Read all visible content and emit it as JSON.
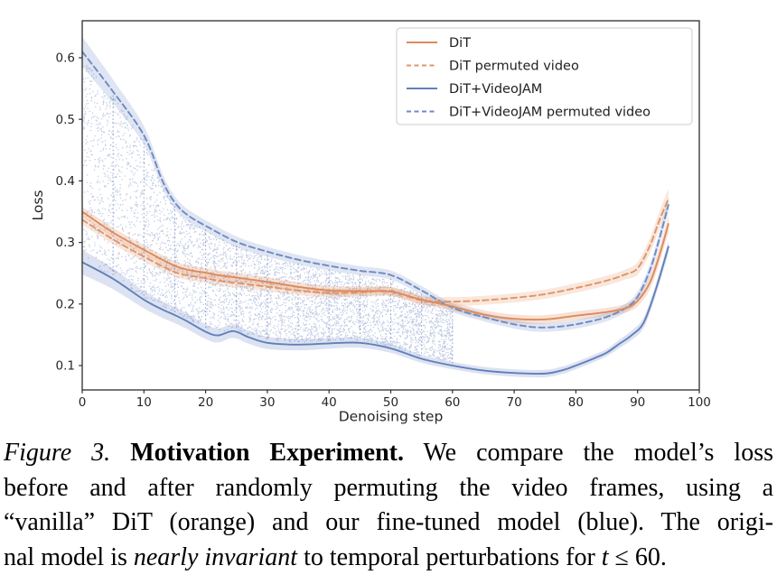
{
  "chart_data": {
    "type": "line",
    "title": "",
    "xlabel": "Denoising step",
    "ylabel": "Loss",
    "xlim": [
      0,
      100
    ],
    "ylim": [
      0.06,
      0.66
    ],
    "x_ticks": [
      0,
      10,
      20,
      30,
      40,
      50,
      60,
      70,
      80,
      90,
      100
    ],
    "y_ticks": [
      0.1,
      0.2,
      0.3,
      0.4,
      0.5,
      0.6
    ],
    "grid": "off",
    "legend_position": "upper right",
    "series": [
      {
        "name": "DiT",
        "style": "solid",
        "color": "#dd8a5c",
        "band_color": "rgba(228,160,120,0.30)",
        "x": [
          0,
          5,
          10,
          15,
          18,
          20,
          22,
          25,
          30,
          35,
          40,
          45,
          50,
          55,
          60,
          65,
          70,
          75,
          80,
          85,
          88,
          90,
          92,
          93.5,
          95
        ],
        "y": [
          0.35,
          0.316,
          0.288,
          0.262,
          0.254,
          0.251,
          0.247,
          0.243,
          0.236,
          0.228,
          0.222,
          0.221,
          0.22,
          0.207,
          0.196,
          0.183,
          0.176,
          0.175,
          0.181,
          0.187,
          0.193,
          0.205,
          0.235,
          0.278,
          0.33
        ],
        "band": [
          [
            0,
            0.008
          ],
          [
            60,
            0.007
          ],
          [
            88,
            0.007
          ],
          [
            95,
            0.014
          ]
        ]
      },
      {
        "name": "DiT permuted video",
        "style": "dashed",
        "color": "#e09468",
        "band_color": "rgba(232,170,130,0.28)",
        "x": [
          0,
          5,
          10,
          15,
          18,
          20,
          22,
          25,
          30,
          35,
          40,
          45,
          50,
          55,
          60,
          65,
          70,
          75,
          80,
          85,
          88,
          90,
          92,
          93.5,
          95
        ],
        "y": [
          0.337,
          0.305,
          0.277,
          0.252,
          0.245,
          0.242,
          0.238,
          0.234,
          0.228,
          0.222,
          0.218,
          0.219,
          0.221,
          0.206,
          0.204,
          0.206,
          0.21,
          0.216,
          0.226,
          0.238,
          0.248,
          0.258,
          0.295,
          0.335,
          0.371
        ],
        "band": [
          [
            0,
            0.008
          ],
          [
            60,
            0.007
          ],
          [
            88,
            0.008
          ],
          [
            95,
            0.016
          ]
        ]
      },
      {
        "name": "DiT+VideoJAM",
        "style": "solid",
        "color": "#6080ba",
        "band_color": "rgba(140,160,210,0.30)",
        "x": [
          0,
          5,
          10,
          13,
          15,
          17,
          20,
          22,
          24.5,
          27,
          30,
          35,
          40,
          45,
          50,
          55,
          60,
          65,
          70,
          75,
          78,
          80,
          83,
          85,
          87,
          89,
          91,
          93,
          95
        ],
        "y": [
          0.268,
          0.241,
          0.207,
          0.191,
          0.182,
          0.172,
          0.155,
          0.149,
          0.156,
          0.146,
          0.137,
          0.134,
          0.136,
          0.137,
          0.128,
          0.111,
          0.1,
          0.092,
          0.088,
          0.087,
          0.093,
          0.1,
          0.112,
          0.121,
          0.135,
          0.149,
          0.17,
          0.225,
          0.293
        ],
        "band": [
          [
            0,
            0.02
          ],
          [
            10,
            0.014
          ],
          [
            20,
            0.012
          ],
          [
            30,
            0.01
          ],
          [
            45,
            0.008
          ],
          [
            60,
            0.006
          ],
          [
            85,
            0.006
          ],
          [
            95,
            0.01
          ]
        ]
      },
      {
        "name": "DiT+VideoJAM permuted video",
        "style": "dashed",
        "color": "#6e8ac2",
        "band_color": "rgba(140,160,210,0.28)",
        "x": [
          0,
          5,
          10,
          13,
          15,
          17,
          20,
          25,
          30,
          35,
          40,
          45,
          50,
          55,
          60,
          65,
          70,
          74,
          78,
          82,
          85,
          88,
          90,
          92,
          93.5,
          95
        ],
        "y": [
          0.61,
          0.545,
          0.474,
          0.4,
          0.365,
          0.345,
          0.327,
          0.301,
          0.285,
          0.272,
          0.262,
          0.254,
          0.247,
          0.222,
          0.194,
          0.179,
          0.167,
          0.162,
          0.164,
          0.171,
          0.179,
          0.193,
          0.212,
          0.255,
          0.305,
          0.361
        ],
        "band": [
          [
            0,
            0.024
          ],
          [
            10,
            0.015
          ],
          [
            15,
            0.01
          ],
          [
            30,
            0.008
          ],
          [
            60,
            0.007
          ],
          [
            88,
            0.007
          ],
          [
            95,
            0.012
          ]
        ]
      }
    ],
    "stipple": {
      "description": "scatter speckle fill between DiT+VideoJAM and DiT+VideoJAM permuted video curves",
      "x_min": 0,
      "x_max": 60,
      "lower_series": 2,
      "upper_series": 3,
      "dot_color": "rgba(95,120,185,0.38)",
      "n_points": 4600,
      "vline_step": 5,
      "vline_color": "rgba(80,108,178,0.65)"
    },
    "axis_color": "#2d2d2d",
    "tick_label_color": "#262626"
  },
  "legend": {
    "items": [
      {
        "label": "DiT"
      },
      {
        "label": "DiT permuted video"
      },
      {
        "label": "DiT+VideoJAM"
      },
      {
        "label": "DiT+VideoJAM permuted video"
      }
    ]
  },
  "caption": {
    "lines": [
      {
        "segments": [
          {
            "text": "Figure 3. ",
            "style": "italic"
          },
          {
            "text": "Motivation Experiment.",
            "style": "bold"
          },
          {
            "text": " We compare the model’s loss",
            "style": "normal"
          }
        ]
      },
      {
        "segments": [
          {
            "text": "before and after randomly permuting the video frames, using a",
            "style": "normal"
          }
        ]
      },
      {
        "segments": [
          {
            "text": "“vanilla” DiT (orange) and our fine-tuned model (blue). The origi-",
            "style": "normal"
          }
        ]
      },
      {
        "segments": [
          {
            "text": "nal model is ",
            "style": "normal"
          },
          {
            "text": "nearly invariant",
            "style": "italic"
          },
          {
            "text": " to temporal perturbations for ",
            "style": "normal"
          },
          {
            "text": "t",
            "style": "italic"
          },
          {
            "text": " ≤ 60.",
            "style": "normal"
          }
        ]
      }
    ]
  }
}
